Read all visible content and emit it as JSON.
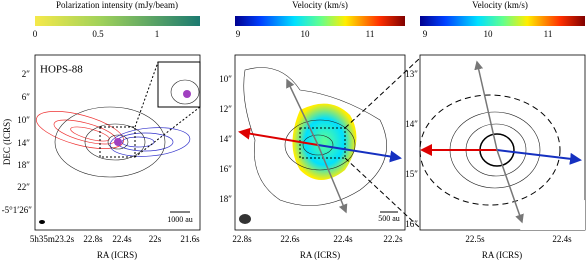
{
  "panels": [
    {
      "colorbar": {
        "label": "Polarization intensity (mJy/beam)",
        "ticks": [
          "0",
          "0.5",
          "1"
        ]
      },
      "source": "HOPS-88",
      "scale_bar": "1000 au",
      "x_label": "RA (ICRS)",
      "y_label": "DEC (ICRS)",
      "x_ticks": [
        "5h35m23.2s",
        "22.8s",
        "22.4s",
        "22s",
        "21.6s"
      ],
      "y_ticks": [
        "2″",
        "6″",
        "10″",
        "14″",
        "18″",
        "22″",
        "-5°1′26″"
      ]
    },
    {
      "colorbar": {
        "label": "Velocity (km/s)",
        "ticks": [
          "9",
          "10",
          "11"
        ]
      },
      "scale_bar": "500 au",
      "x_label": "RA (ICRS)",
      "x_ticks": [
        "22.8s",
        "22.6s",
        "22.4s",
        "22.2s"
      ],
      "y_ticks": [
        "10″",
        "12″",
        "14″",
        "16″",
        "18″"
      ]
    },
    {
      "colorbar": {
        "label": "Velocity (km/s)",
        "ticks": [
          "9",
          "10",
          "11"
        ]
      },
      "x_label": "RA (ICRS)",
      "x_ticks": [
        "22.5s",
        "22.4s"
      ],
      "y_ticks": [
        "13″",
        "14″",
        "15″",
        "16″"
      ]
    }
  ]
}
